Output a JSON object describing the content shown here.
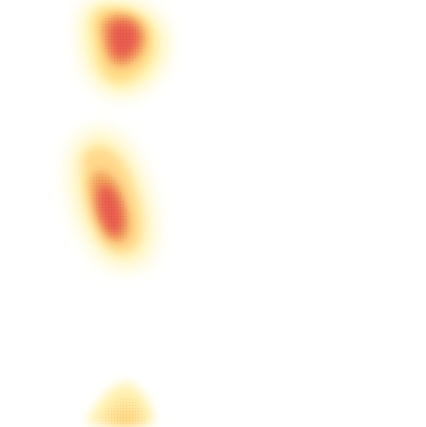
{
  "image": {
    "description_kind": "density-heatmap-blobs",
    "background_color": "#ffffff",
    "color_stops": [
      "#fff7b0",
      "#ffe08a",
      "#f6b35a",
      "#e8584e"
    ]
  }
}
